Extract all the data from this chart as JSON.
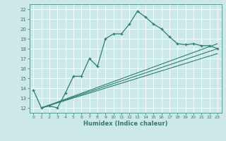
{
  "xlabel": "Humidex (Indice chaleur)",
  "xlim": [
    -0.5,
    23.5
  ],
  "ylim": [
    11.5,
    22.5
  ],
  "yticks": [
    12,
    13,
    14,
    15,
    16,
    17,
    18,
    19,
    20,
    21,
    22
  ],
  "xticks": [
    0,
    1,
    2,
    3,
    4,
    5,
    6,
    7,
    8,
    9,
    10,
    11,
    12,
    13,
    14,
    15,
    16,
    17,
    18,
    19,
    20,
    21,
    22,
    23
  ],
  "bg_color": "#cce8e8",
  "grid_color": "#ffffff",
  "line_color": "#2e7d6e",
  "main_line_x": [
    0,
    1,
    2,
    3,
    4,
    5,
    6,
    7,
    8,
    9,
    10,
    11,
    12,
    13,
    14,
    15,
    16,
    17,
    18,
    19,
    20,
    21,
    22,
    23
  ],
  "main_line_y": [
    13.8,
    12.0,
    12.2,
    12.0,
    13.5,
    15.2,
    15.2,
    17.0,
    16.2,
    19.0,
    19.5,
    19.5,
    20.5,
    21.8,
    21.2,
    20.5,
    20.0,
    19.2,
    18.5,
    18.4,
    18.5,
    18.3,
    18.3,
    18.0
  ],
  "trend1_x": [
    1,
    23
  ],
  "trend1_y": [
    12.0,
    17.5
  ],
  "trend2_x": [
    1,
    23
  ],
  "trend2_y": [
    12.0,
    18.0
  ],
  "trend3_x": [
    1,
    23
  ],
  "trend3_y": [
    12.0,
    18.5
  ]
}
